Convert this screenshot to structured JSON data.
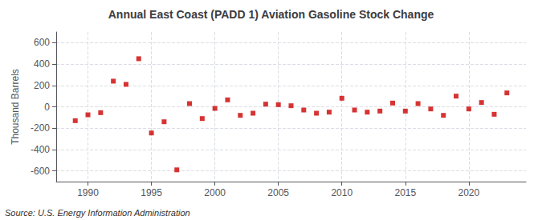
{
  "chart_data": {
    "type": "scatter",
    "title": "Annual East Coast (PADD 1) Aviation Gasoline Stock Change",
    "ylabel": "Thousand Barrels",
    "annotation": "Source: U.S. Energy Information Administration",
    "x": [
      1989,
      1990,
      1991,
      1992,
      1993,
      1994,
      1995,
      1996,
      1997,
      1998,
      1999,
      2000,
      2001,
      2002,
      2003,
      2004,
      2005,
      2006,
      2007,
      2008,
      2009,
      2010,
      2011,
      2012,
      2013,
      2014,
      2015,
      2016,
      2017,
      2018,
      2019,
      2020,
      2021,
      2022,
      2023
    ],
    "values": [
      -130,
      -75,
      -55,
      240,
      210,
      450,
      -245,
      -140,
      -590,
      30,
      -110,
      -15,
      65,
      -80,
      -60,
      25,
      20,
      10,
      -30,
      -60,
      -50,
      80,
      -30,
      -50,
      -40,
      35,
      -40,
      30,
      -20,
      -80,
      100,
      -20,
      40,
      -70,
      130
    ],
    "color": "#cc0000",
    "marker": "square",
    "xlim": [
      1987.5,
      2024.5
    ],
    "xticks": [
      1990,
      1995,
      2000,
      2005,
      2010,
      2015,
      2020
    ],
    "ylim": [
      -700,
      700
    ],
    "yticks": [
      -600,
      -400,
      -200,
      0,
      200,
      400,
      600
    ],
    "grid": true
  }
}
